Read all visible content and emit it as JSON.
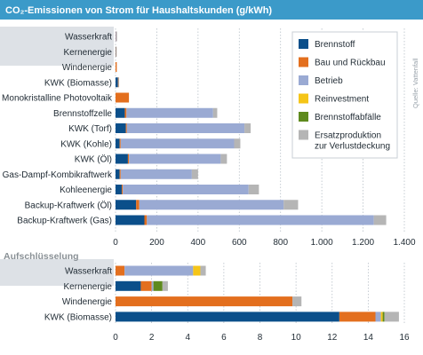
{
  "title": "CO₂-Emissionen von Strom für Haushaltskunden (g/kWh)",
  "source": "Quelle: Vattenfall",
  "detail_heading": "Aufschlüsselung",
  "legend_order": [
    "Brennstoff",
    "Bau und Rückbau",
    "Betrieb",
    "Reinvestment",
    "Brennstoffabfälle",
    "Ersatzproduktion zur Verlustdeckung"
  ],
  "colors": {
    "Brennstoff": "#0b4f8a",
    "Bau und Rückbau": "#e36f1e",
    "Betrieb": "#9aaad3",
    "Reinvestment": "#f5c518",
    "Brennstoffabfälle": "#5e8a1e",
    "Ersatzproduktion zur Verlustdeckung": "#b5b5b5"
  },
  "chart_data": [
    {
      "type": "bar",
      "orientation": "horizontal",
      "stacked": true,
      "title": "CO₂-Emissionen von Strom für Haushaltskunden (g/kWh)",
      "xlim": [
        0,
        1400
      ],
      "xticks": [
        0,
        200,
        400,
        600,
        800,
        1000,
        1200,
        1400
      ],
      "xtick_labels": [
        "0",
        "200",
        "400",
        "600",
        "800",
        "1.000",
        "1.200",
        "1.400"
      ],
      "grid": true,
      "legend_position": "top-right",
      "categories": [
        "Wasserkraft",
        "Kernenergie",
        "Windenergie",
        "KWK (Biomasse)",
        "Monokristalline Photovoltaik",
        "Brennstoffzelle",
        "KWK (Torf)",
        "KWK (Kohle)",
        "KWK (Öl)",
        "Gas-Dampf-Kombikraftwerk",
        "Kohleenergie",
        "Backup-Kraftwerk (Öl)",
        "Backup-Kraftwerk (Gas)"
      ],
      "series": [
        {
          "name": "Brennstoff",
          "values": [
            0,
            1,
            0,
            12,
            0,
            45,
            50,
            20,
            60,
            20,
            30,
            100,
            140
          ]
        },
        {
          "name": "Bau und Rückbau",
          "values": [
            1,
            1,
            6,
            2,
            65,
            8,
            5,
            5,
            5,
            5,
            5,
            15,
            12
          ]
        },
        {
          "name": "Betrieb",
          "values": [
            3,
            0,
            0,
            0,
            0,
            420,
            570,
            550,
            445,
            345,
            610,
            700,
            1100
          ]
        },
        {
          "name": "Reinvestment",
          "values": [
            0,
            0,
            0,
            0,
            0,
            0,
            0,
            0,
            0,
            0,
            0,
            0,
            0
          ]
        },
        {
          "name": "Brennstoffabfälle",
          "values": [
            0,
            0,
            0,
            0,
            0,
            0,
            0,
            0,
            0,
            0,
            0,
            0,
            0
          ]
        },
        {
          "name": "Ersatzproduktion zur Verlustdeckung",
          "values": [
            1,
            1,
            0,
            1,
            0,
            20,
            30,
            30,
            30,
            30,
            50,
            70,
            60
          ]
        }
      ]
    },
    {
      "type": "bar",
      "orientation": "horizontal",
      "stacked": true,
      "title": "Aufschlüsselung",
      "xlim": [
        0,
        16
      ],
      "xticks": [
        0,
        2,
        4,
        6,
        8,
        10,
        12,
        14,
        16
      ],
      "xtick_labels": [
        "0",
        "2",
        "4",
        "6",
        "8",
        "10",
        "12",
        "14",
        "16"
      ],
      "grid": true,
      "categories": [
        "Wasserkraft",
        "Kernenergie",
        "Windenergie",
        "KWK (Biomasse)"
      ],
      "series": [
        {
          "name": "Brennstoff",
          "values": [
            0,
            1.4,
            0,
            12.4
          ]
        },
        {
          "name": "Bau und Rückbau",
          "values": [
            0.5,
            0.6,
            9.8,
            2.0
          ]
        },
        {
          "name": "Betrieb",
          "values": [
            3.8,
            0.1,
            0,
            0.3
          ]
        },
        {
          "name": "Reinvestment",
          "values": [
            0.4,
            0,
            0,
            0.1
          ]
        },
        {
          "name": "Brennstoffabfälle",
          "values": [
            0,
            0.5,
            0,
            0.1
          ]
        },
        {
          "name": "Ersatzproduktion zur Verlustdeckung",
          "values": [
            0.3,
            0.3,
            0.5,
            0.8
          ]
        }
      ]
    }
  ]
}
